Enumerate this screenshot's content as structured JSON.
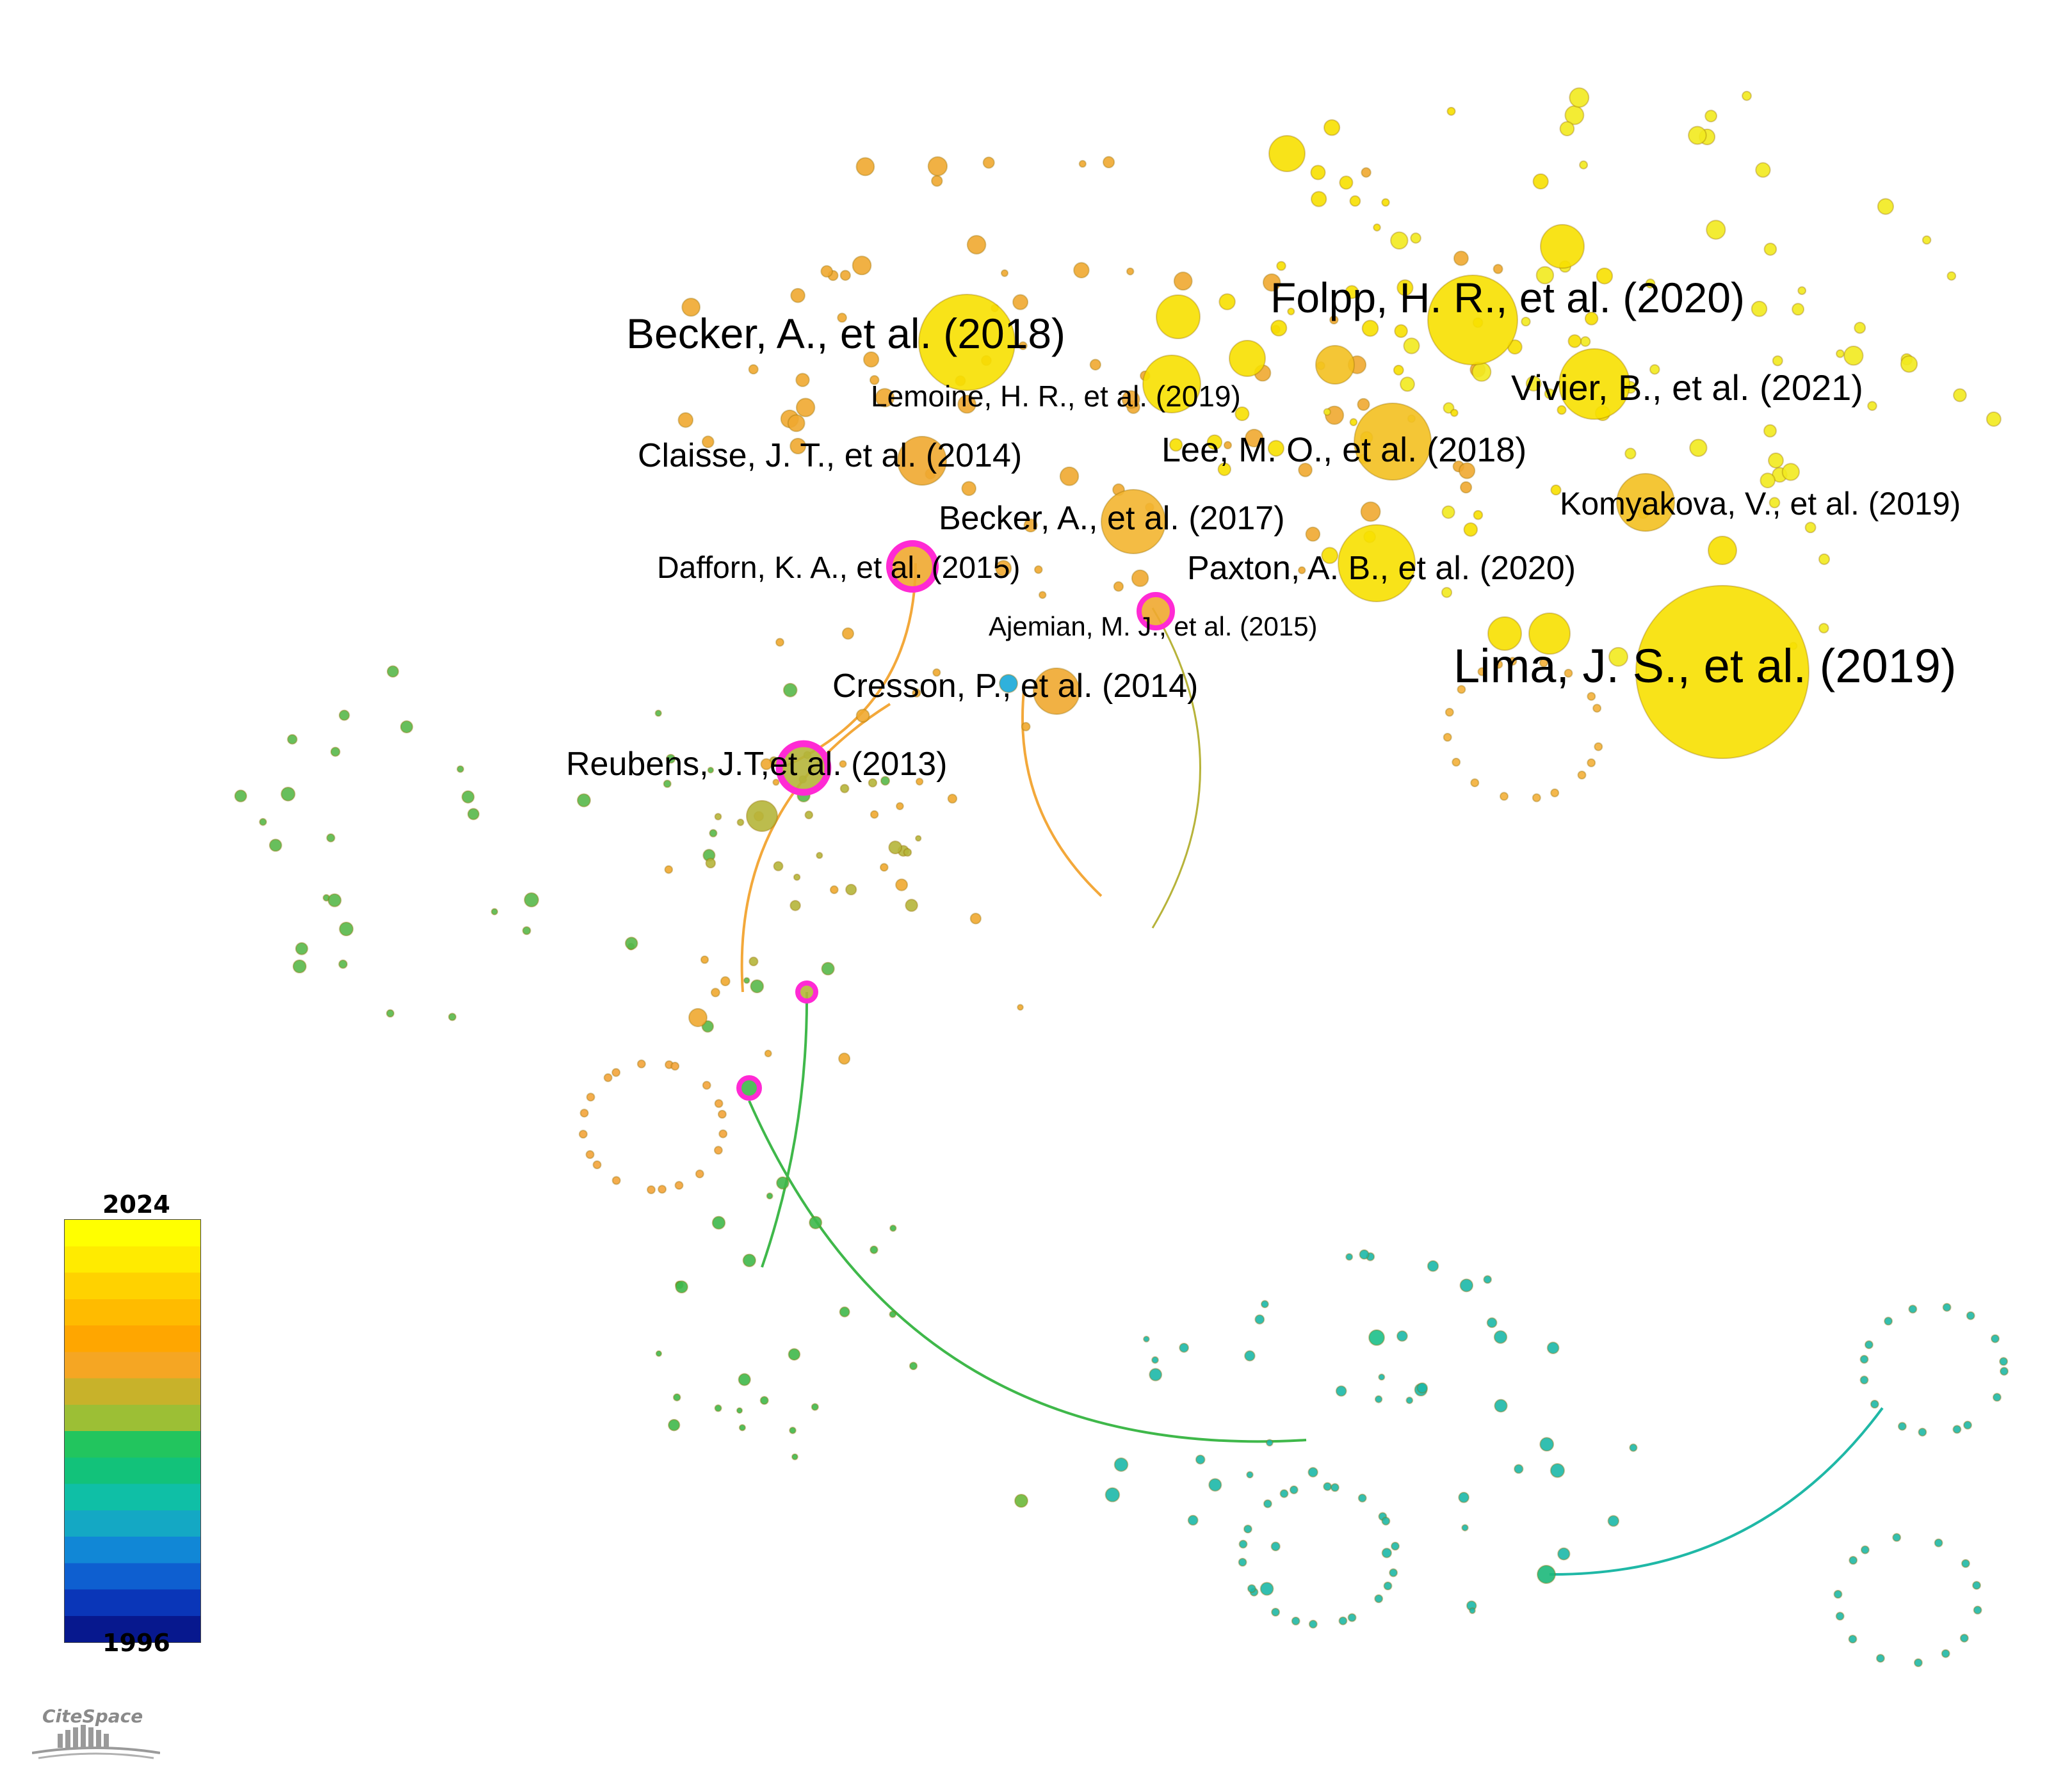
{
  "legend": {
    "max_year": "2024",
    "min_year": "1996",
    "colors": [
      "#ffff00",
      "#ffeb00",
      "#ffd200",
      "#ffbb00",
      "#ffa600",
      "#f5a623",
      "#c8b22a",
      "#9cbf35",
      "#22c55e",
      "#12c27a",
      "#0fbfa6",
      "#14a8c4",
      "#1187d6",
      "#0e5fd0",
      "#0a36b8",
      "#07188e"
    ]
  },
  "logo": {
    "text": "CiteSpace"
  },
  "node_colors": {
    "yellow": "#f7e000",
    "light_yellow": "#f2ea1e",
    "orange": "#f0a830",
    "olive": "#b5b53a",
    "green": "#58b84a",
    "teal": "#1cb8a8",
    "cyan": "#18b0c8",
    "magenta": "#ff2ad4"
  },
  "labels": [
    {
      "id": "becker2018",
      "text": "Becker, A., et al. (2018)"
    },
    {
      "id": "folpp2020",
      "text": "Folpp, H. R., et al. (2020)"
    },
    {
      "id": "lemoine2019",
      "text": "Lemoine, H. R., et al. (2019)"
    },
    {
      "id": "vivier2021",
      "text": "Vivier, B., et al. (2021)"
    },
    {
      "id": "claisse2014",
      "text": "Claisse, J. T., et al. (2014)"
    },
    {
      "id": "lee2018",
      "text": "Lee, M. O., et al. (2018)"
    },
    {
      "id": "becker2017",
      "text": "Becker, A., et al. (2017)"
    },
    {
      "id": "komyakova2019",
      "text": "Komyakova, V., et al. (2019)"
    },
    {
      "id": "dafforn2015",
      "text": "Dafforn, K. A., et al. (2015)"
    },
    {
      "id": "paxton2020",
      "text": "Paxton, A. B., et al. (2020)"
    },
    {
      "id": "ajemian2015",
      "text": "Ajemian, M. J., et al. (2015)"
    },
    {
      "id": "lima2019",
      "text": "Lima, J. S., et al. (2019)"
    },
    {
      "id": "cresson2014",
      "text": "Cresson, P., et al. (2014)"
    },
    {
      "id": "reubens2013",
      "text": "Reubens, J.T,et al. (2013)"
    }
  ]
}
